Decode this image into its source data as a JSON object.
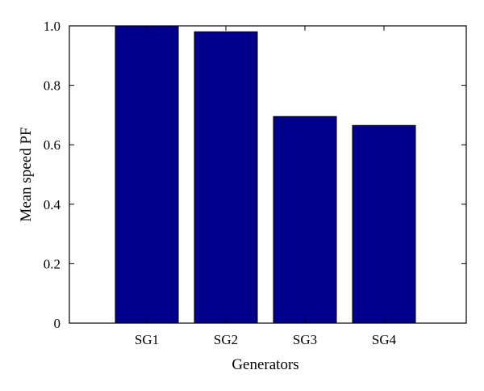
{
  "chart_data": {
    "type": "bar",
    "categories": [
      "SG1",
      "SG2",
      "SG3",
      "SG4"
    ],
    "values": [
      1.0,
      0.98,
      0.695,
      0.665
    ],
    "xlabel": "Generators",
    "ylabel": "Mean speed PF",
    "ylim": [
      0,
      1.0
    ],
    "yticks": [
      0,
      0.2,
      0.4,
      0.6,
      0.8,
      1.0
    ],
    "ytick_labels": [
      "0",
      "0.2",
      "0.4",
      "0.6",
      "0.8",
      "1.0"
    ],
    "grid": false,
    "legend": "none",
    "bar_color": "#00008b",
    "bar_edge_color": "#000000"
  }
}
